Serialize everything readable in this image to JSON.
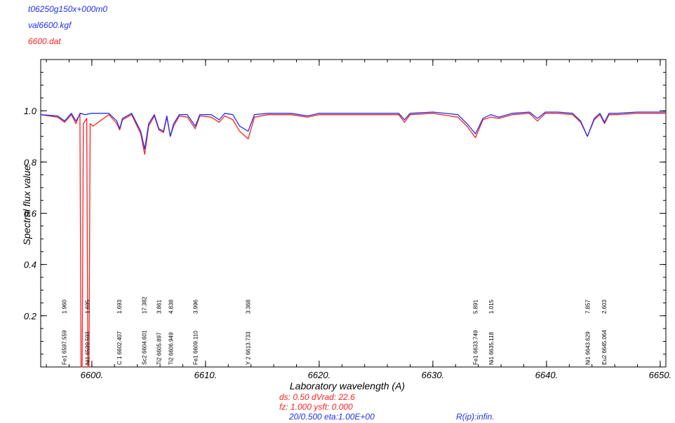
{
  "header": {
    "model": "t06250g150x+000m0",
    "linelist": "val6600.kgf",
    "observed": "6600.dat"
  },
  "colors": {
    "model": "#2030f0",
    "observed": "#ff2020",
    "axis": "#000000"
  },
  "footer": {
    "line1": "ds:  0.50 dVrad:  22.6",
    "line2": "fz: 1.000  ysft: 0.000",
    "line3": "20/0.500 eta:1.00E+00",
    "line4": "R(ip):infin."
  },
  "chart_data": {
    "type": "line",
    "xlabel": "Laboratory wavelength (A)",
    "ylabel": "Spectral flux value",
    "xlim": [
      6595.5,
      6650.5
    ],
    "ylim": [
      0.0,
      1.2
    ],
    "xticks": [
      6600,
      6610,
      6620,
      6630,
      6640,
      6650
    ],
    "xtick_labels": [
      "6600.",
      "6610.",
      "6620.",
      "6630.",
      "6640.",
      "6650."
    ],
    "yticks": [
      0.2,
      0.4,
      0.6,
      0.8,
      1.0
    ],
    "ytick_labels": [
      "0.2",
      "0.4",
      "0.6",
      "0.8",
      "1.0"
    ],
    "series": [
      {
        "name": "val6600.kgf",
        "x": [
          6595.5,
          6597.0,
          6597.6,
          6598.2,
          6598.6,
          6599.0,
          6599.4,
          6600.0,
          6601.5,
          6602.2,
          6602.45,
          6602.7,
          6603.5,
          6604.3,
          6604.65,
          6605.0,
          6605.5,
          6605.9,
          6606.3,
          6606.6,
          6606.9,
          6607.2,
          6607.7,
          6608.4,
          6609.1,
          6609.5,
          6610.5,
          6611.2,
          6611.7,
          6612.4,
          6613.0,
          6613.75,
          6614.3,
          6615.5,
          6617.5,
          6619.0,
          6620.0,
          6622.0,
          6624.5,
          6627.0,
          6627.5,
          6628.0,
          6630.0,
          6632.2,
          6633.0,
          6633.75,
          6634.4,
          6635.1,
          6635.8,
          6637.0,
          6638.5,
          6639.2,
          6639.9,
          6641.0,
          6642.3,
          6643.0,
          6643.6,
          6644.2,
          6644.7,
          6645.1,
          6645.5,
          6646.2,
          6648.0,
          6650.5
        ],
        "y": [
          0.985,
          0.98,
          0.96,
          0.99,
          0.96,
          0.99,
          0.985,
          0.99,
          0.99,
          0.96,
          0.93,
          0.97,
          0.99,
          0.92,
          0.85,
          0.95,
          0.985,
          0.93,
          0.92,
          0.98,
          0.9,
          0.95,
          0.985,
          0.985,
          0.94,
          0.985,
          0.985,
          0.965,
          0.99,
          0.985,
          0.94,
          0.92,
          0.985,
          0.99,
          0.99,
          0.98,
          0.99,
          0.99,
          0.99,
          0.99,
          0.965,
          0.99,
          0.995,
          0.985,
          0.95,
          0.91,
          0.97,
          0.985,
          0.975,
          0.99,
          0.995,
          0.97,
          0.995,
          0.995,
          0.99,
          0.96,
          0.9,
          0.97,
          0.99,
          0.955,
          0.99,
          0.99,
          0.995,
          0.995
        ]
      },
      {
        "name": "6600.dat",
        "x": [
          6595.5,
          6597.0,
          6597.6,
          6598.2,
          6598.6,
          6598.95,
          6599.05,
          6599.15,
          6599.25,
          6599.55,
          6599.65,
          6599.75,
          6599.85,
          6600.1,
          6601.5,
          6602.2,
          6602.45,
          6602.7,
          6603.5,
          6604.3,
          6604.65,
          6605.0,
          6605.5,
          6605.9,
          6606.3,
          6606.6,
          6606.9,
          6607.2,
          6607.7,
          6608.4,
          6609.1,
          6609.5,
          6610.5,
          6611.2,
          6611.7,
          6612.4,
          6613.0,
          6613.75,
          6614.3,
          6615.5,
          6617.5,
          6619.0,
          6620.0,
          6622.0,
          6624.5,
          6627.0,
          6627.5,
          6628.0,
          6630.0,
          6632.2,
          6633.0,
          6633.75,
          6634.4,
          6635.1,
          6635.8,
          6637.0,
          6638.5,
          6639.2,
          6639.9,
          6641.0,
          6642.3,
          6643.0,
          6643.6,
          6644.2,
          6644.7,
          6645.1,
          6645.5,
          6646.2,
          6648.0,
          6650.5
        ],
        "y": [
          0.985,
          0.975,
          0.955,
          0.985,
          0.95,
          0.99,
          0.0,
          0.0,
          0.95,
          0.97,
          0.0,
          0.0,
          0.95,
          0.94,
          0.985,
          0.95,
          0.925,
          0.965,
          0.985,
          0.91,
          0.83,
          0.94,
          0.98,
          0.925,
          0.915,
          0.975,
          0.9,
          0.94,
          0.98,
          0.975,
          0.93,
          0.98,
          0.975,
          0.955,
          0.98,
          0.965,
          0.92,
          0.89,
          0.975,
          0.985,
          0.985,
          0.975,
          0.985,
          0.985,
          0.985,
          0.985,
          0.955,
          0.985,
          0.99,
          0.975,
          0.94,
          0.895,
          0.965,
          0.975,
          0.97,
          0.985,
          0.99,
          0.96,
          0.99,
          0.99,
          0.985,
          0.955,
          0.9,
          0.965,
          0.985,
          0.95,
          0.985,
          0.985,
          0.99,
          0.99
        ]
      }
    ],
    "annotations": [
      {
        "label": "Fe1 6597.559",
        "value": "1.960",
        "x": 6597.559
      },
      {
        "label": "Ni1 6599.593",
        "value": "1.695",
        "x": 6599.593
      },
      {
        "label": "C 1 6602.407",
        "value": "1.693",
        "x": 6602.407
      },
      {
        "label": "Sc2 6604.601",
        "value": "17.382",
        "x": 6604.601
      },
      {
        "label": "Ti2 6605.897",
        "value": "3.861",
        "x": 6605.897
      },
      {
        "label": "Ti2 6606.949",
        "value": "4.838",
        "x": 6606.949
      },
      {
        "label": "Fe1 6609.110",
        "value": "3.996",
        "x": 6609.11
      },
      {
        "label": "Y 2 6613.733",
        "value": "3.368",
        "x": 6613.733
      },
      {
        "label": "Fe1 6633.749",
        "value": "5.891",
        "x": 6633.749
      },
      {
        "label": "Ni1 6635.118",
        "value": "1.015",
        "x": 6635.118
      },
      {
        "label": "Ni1 6643.629",
        "value": "7.857",
        "x": 6643.629
      },
      {
        "label": "Eu2 6645.064",
        "value": "2.603",
        "x": 6645.064
      }
    ]
  }
}
